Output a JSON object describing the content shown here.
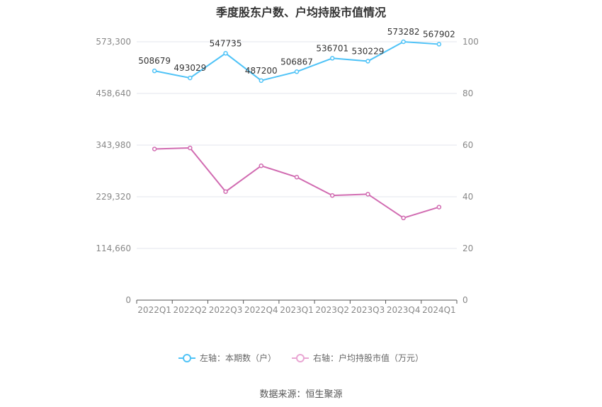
{
  "chart_data": {
    "type": "line",
    "title": "季度股东户数、户均持股市值情况",
    "categories": [
      "2022Q1",
      "2022Q2",
      "2022Q3",
      "2022Q4",
      "2023Q1",
      "2023Q2",
      "2023Q3",
      "2023Q4",
      "2024Q1"
    ],
    "left_axis": {
      "ticks": [
        "573,300",
        "458,640",
        "343,980",
        "229,320",
        "114,660",
        "0"
      ],
      "min": 0,
      "max": 573300
    },
    "right_axis": {
      "ticks": [
        "100",
        "80",
        "60",
        "40",
        "20",
        "0"
      ],
      "min": 0,
      "max": 100
    },
    "series": [
      {
        "name": "左轴：本期数（户）",
        "axis": "left",
        "color": "#4fc3f7",
        "values": [
          508679,
          493029,
          547735,
          487200,
          506867,
          536701,
          530229,
          573282,
          567902
        ],
        "labels": [
          "508679",
          "493029",
          "547735",
          "487200",
          "506867",
          "536701",
          "530229",
          "573282",
          "567902"
        ]
      },
      {
        "name": "右轴：户均持股市值（万元）",
        "axis": "right",
        "color": "#d16bb1",
        "values": [
          58.5,
          58.9,
          42.0,
          52.0,
          47.6,
          40.5,
          41.0,
          31.8,
          36.0
        ]
      }
    ],
    "grid": true,
    "legend_position": "bottom"
  },
  "legend": {
    "left_label": "左轴：本期数（户）",
    "right_label": "右轴：户均持股市值（万元）",
    "left_color": "#4fc3f7",
    "right_color": "#e9a6d3"
  },
  "source": "数据来源：恒生聚源"
}
